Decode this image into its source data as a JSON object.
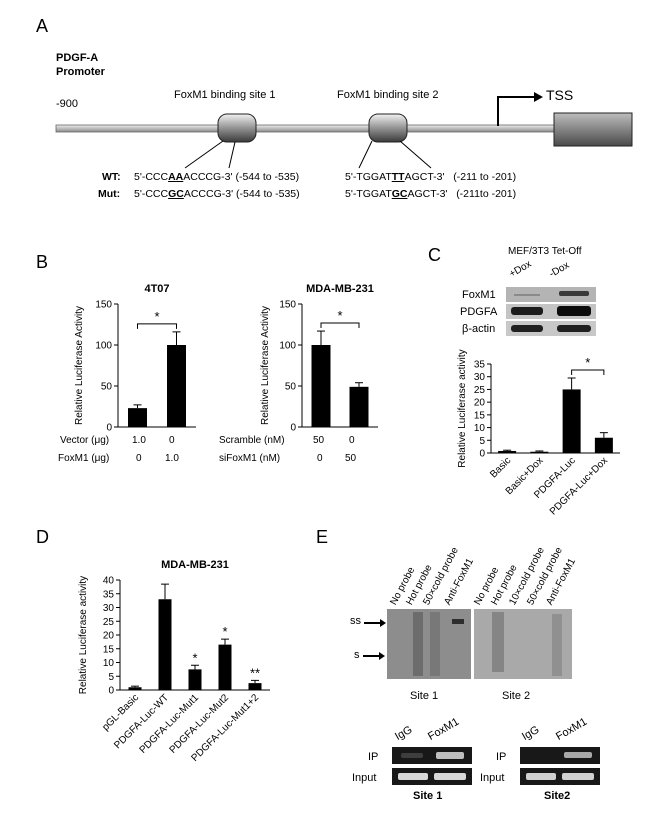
{
  "panels": {
    "a": "A",
    "b": "B",
    "c": "C",
    "d": "D",
    "e": "E"
  },
  "panel_a": {
    "promoter_line1": "PDGF-A",
    "promoter_line2": "Promoter",
    "start_label": "-900",
    "site1_label": "FoxM1 binding site 1",
    "site2_label": "FoxM1 binding site 2",
    "tss_label": "TSS",
    "gene_label": "PDGF-A",
    "wt_label": "WT:",
    "mut_label": "Mut",
    "wt_site1": {
      "pre": "5'-CCC",
      "mark": "AA",
      "post": "ACCCG-3'",
      "range": "(-544 to -535)"
    },
    "mut_site1": {
      "pre": "5'-CCC",
      "mark": "GC",
      "post": "ACCCG-3'",
      "range": "(-544 to -535)"
    },
    "wt_site2": {
      "pre": "5'-TGGAT",
      "mark": "TT",
      "post": "AGCT-3'",
      "range": "(-211 to -201)"
    },
    "mut_site2": {
      "pre": "5'-TGGAT",
      "mark": "GC",
      "post": "AGCT-3'",
      "range": "(-211to -201)"
    }
  },
  "panel_b": {
    "ylabel": "Relative Luciferase Activity",
    "left_row1_label": "Vector (μg)",
    "left_row2_label": "FoxM1 (μg)",
    "left_row1_values": [
      "1.0",
      "0"
    ],
    "left_row2_values": [
      "0",
      "1.0"
    ],
    "right_row1_label": "Scramble (nM)",
    "right_row2_label": "siFoxM1 (nM)",
    "right_row1_values": [
      "50",
      "0"
    ],
    "right_row2_values": [
      "0",
      "50"
    ],
    "sig": "*"
  },
  "panel_c": {
    "title": "MEF/3T3 Tet-Off",
    "lane1": "+Dox",
    "lane2": "-Dox",
    "blot1": "FoxM1",
    "blot2": "PDGFA",
    "blot3": "β-actin",
    "ylabel": "Relative Luciferase activity",
    "sig": "*"
  },
  "panel_d": {
    "ylabel": "Relative Luciferase activity"
  },
  "panel_e": {
    "ss": "ss",
    "s": "s",
    "site1_lanes": [
      "No probe",
      "Hot probe",
      "50×cold probe",
      "Anti-FoxM1"
    ],
    "site2_lanes": [
      "No probe",
      "Hot probe",
      "10×cold probe",
      "50×cold probe",
      "Anti-FoxM1"
    ],
    "site1_caption": "Site 1",
    "site2_caption": "Site 2",
    "chip_lanes": [
      "IgG",
      "FoxM1"
    ],
    "ip": "IP",
    "input": "Input",
    "chip1_caption": "Site 1",
    "chip2_caption": "Site2"
  },
  "chart_data": [
    {
      "type": "bar",
      "title": "4T07",
      "categories": [
        "Vector",
        "FoxM1"
      ],
      "values": [
        23,
        100
      ],
      "errors": [
        4,
        16
      ],
      "ylabel": "Relative Luciferase Activity",
      "yticks": [
        0,
        50,
        100,
        150
      ],
      "ylim": [
        0,
        150
      ],
      "significance": [
        [
          0,
          1,
          "*"
        ]
      ]
    },
    {
      "type": "bar",
      "title": "MDA-MB-231",
      "categories": [
        "Scramble",
        "siFoxM1"
      ],
      "values": [
        100,
        49
      ],
      "errors": [
        17,
        5
      ],
      "ylabel": "Relative Luciferase Activity",
      "yticks": [
        0,
        50,
        100,
        150
      ],
      "ylim": [
        0,
        150
      ],
      "significance": [
        [
          0,
          1,
          "*"
        ]
      ]
    },
    {
      "type": "bar",
      "title": "",
      "categories": [
        "Basic",
        "Basic+Dox",
        "PDGFA-Luc",
        "PDGFA-Luc+Dox"
      ],
      "values": [
        0.8,
        0.5,
        25,
        6
      ],
      "errors": [
        0.3,
        0.3,
        4.5,
        2
      ],
      "ylabel": "Relative Luciferase activity",
      "yticks": [
        0,
        5,
        10,
        15,
        20,
        25,
        30,
        35
      ],
      "ylim": [
        0,
        35
      ],
      "significance": [
        [
          2,
          3,
          "*"
        ]
      ]
    },
    {
      "type": "bar",
      "title": "MDA-MB-231",
      "categories": [
        "pGL-Basic",
        "PDGFA-Luc-WT",
        "PDGFA-Luc-Mut1",
        "PDGFA-Luc-Mut2",
        "PDGFA-Luc-Mut1+2"
      ],
      "values": [
        1,
        33,
        7.5,
        16.5,
        2.5
      ],
      "errors": [
        0.4,
        5.5,
        1.5,
        2,
        1
      ],
      "labels": [
        "",
        "",
        "*",
        "*",
        "**"
      ],
      "ylabel": "Relative Luciferase activity",
      "yticks": [
        0,
        5,
        10,
        15,
        20,
        25,
        30,
        35,
        40
      ],
      "ylim": [
        0,
        40
      ]
    }
  ]
}
